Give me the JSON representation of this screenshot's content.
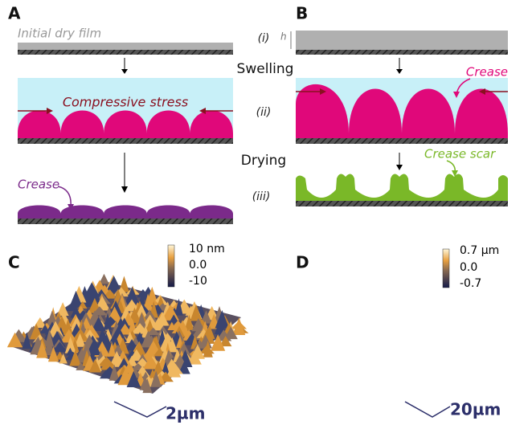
{
  "panels": {
    "a": {
      "label": "A",
      "film_label": "Initial dry film",
      "stress_label": "Compressive stress",
      "crease_label": "Crease"
    },
    "b": {
      "label": "B",
      "thickness_label": "h",
      "crease_label": "Crease",
      "scar_label": "Crease scar"
    },
    "c": {
      "label": "C",
      "colorbar_ticks": [
        "10 nm",
        "0.0",
        "-10"
      ],
      "scale_bar": "2µm"
    },
    "d": {
      "label": "D",
      "colorbar_ticks": [
        "0.7 µm",
        "0.0",
        "-0.7"
      ],
      "scale_bar": "20µm"
    }
  },
  "steps": [
    "Swelling",
    "Drying"
  ],
  "stages": [
    "(i)",
    "(ii)",
    "(iii)"
  ]
}
